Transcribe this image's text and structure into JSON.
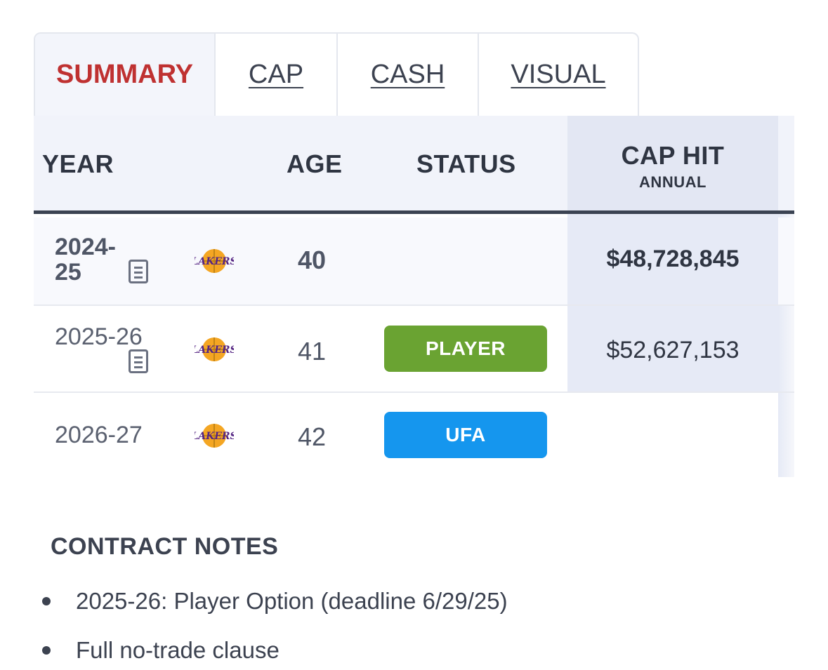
{
  "tabs": [
    {
      "label": "SUMMARY",
      "active": true
    },
    {
      "label": "CAP",
      "active": false
    },
    {
      "label": "CASH",
      "active": false
    },
    {
      "label": "VISUAL",
      "active": false
    }
  ],
  "table": {
    "headers": {
      "year": "YEAR",
      "age": "AGE",
      "status": "STATUS",
      "cap_hit": "CAP HIT",
      "cap_hit_sub": "ANNUAL"
    },
    "rows": [
      {
        "year_line1": "2024-",
        "year_line2": "25",
        "team_logo": "lakers-logo",
        "age": "40",
        "status": "",
        "cap_hit": "$48,728,845",
        "current": true
      },
      {
        "year_line1": "2025-26",
        "year_line2": "",
        "team_logo": "lakers-logo",
        "age": "41",
        "status": "PLAYER",
        "status_color": "#6aa332",
        "cap_hit": "$52,627,153"
      },
      {
        "year_line1": "2026-27",
        "year_line2": "",
        "team_logo": "lakers-logo",
        "age": "42",
        "status": "UFA",
        "status_color": "#1596ee",
        "cap_hit": ""
      }
    ]
  },
  "notes": {
    "title": "CONTRACT NOTES",
    "items": [
      "2025-26: Player Option (deadline 6/29/25)",
      "Full no-trade clause"
    ]
  },
  "colors": {
    "active_tab": "#bf3131",
    "header_rule": "#3b4352",
    "player_option": "#6aa332",
    "ufa": "#1596ee"
  }
}
